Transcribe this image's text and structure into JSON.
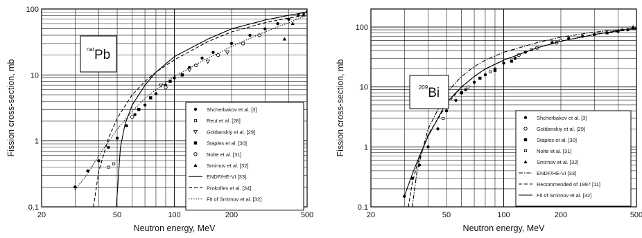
{
  "figure": {
    "panels": [
      {
        "id": "pb",
        "label": {
          "sup": "nat",
          "main": "Pb"
        },
        "xlabel": "Neutron energy, MeV",
        "ylabel": "Fission cross-section, mb",
        "x_tick_labels": [
          "20",
          "50",
          "100",
          "200",
          "500"
        ],
        "y_tick_labels": [
          "0.1",
          "1",
          "10",
          "100"
        ],
        "legend": [
          {
            "label": "Shcherbakov et al. [3]",
            "marker": "filled-circle"
          },
          {
            "label": "Reut et al. [28]",
            "marker": "small-square"
          },
          {
            "label": "Goldanskiy et al. [29]",
            "marker": "down-triangle"
          },
          {
            "label": "Staples et al. [30]",
            "marker": "filled-square"
          },
          {
            "label": "Nolte et al. [31]",
            "marker": "open-circle"
          },
          {
            "label": "Smirnov et al. [32]",
            "marker": "up-triangle"
          },
          {
            "label": "ENDF/HE-VI [33]",
            "line": "solid"
          },
          {
            "label": "Prokofiev et al. [34]",
            "line": "dashed"
          },
          {
            "label": "Fit of Smirnov et al. [32]",
            "line": "dotted"
          }
        ]
      },
      {
        "id": "bi",
        "label": {
          "sup": "209",
          "main": "Bi"
        },
        "xlabel": "Neutron energy, MeV",
        "ylabel": "Fission cross-section, mb",
        "x_tick_labels": [
          "20",
          "50",
          "100",
          "200",
          "500"
        ],
        "y_tick_labels": [
          "0.1",
          "1",
          "10",
          "100"
        ],
        "legend": [
          {
            "label": "Shcherbakov et al. [3]",
            "marker": "filled-circle"
          },
          {
            "label": "Goldanskiy et al. [29]",
            "marker": "open-circle"
          },
          {
            "label": "Staples et al. [30]",
            "marker": "filled-square"
          },
          {
            "label": "Nolte et al. [31]",
            "marker": "small-square"
          },
          {
            "label": "Smirnov et al. [32]",
            "marker": "up-triangle"
          },
          {
            "label": "ENDF/HE-VI [33]",
            "line": "dashdot"
          },
          {
            "label": "Recommended of 1997 [11]",
            "line": "dashed"
          },
          {
            "label": "Fit of Smirnov et al. [32]",
            "line": "solid"
          }
        ]
      }
    ]
  },
  "chart_data": [
    {
      "type": "scatter",
      "xlabel": "Neutron energy, MeV",
      "ylabel": "Fission cross-section, mb",
      "xscale": "log",
      "yscale": "log",
      "xlim": [
        20,
        500
      ],
      "ylim": [
        0.1,
        100
      ],
      "grid": true,
      "legend_position": "lower-right",
      "series": [
        {
          "name": "Shcherbakov et al. [3]",
          "kind": "points",
          "marker": "filled-circle",
          "x": [
            30,
            35,
            40,
            45,
            50,
            56,
            62,
            70,
            80,
            90,
            100,
            120,
            140,
            160,
            200,
            250,
            300,
            350,
            400,
            450,
            500
          ],
          "y": [
            0.2,
            0.35,
            0.5,
            0.8,
            1.1,
            1.7,
            2.5,
            3.5,
            5.2,
            7.0,
            9.0,
            13,
            18,
            22,
            30,
            40,
            50,
            60,
            70,
            80,
            90
          ]
        },
        {
          "name": "Reut et al. [28]",
          "kind": "points",
          "marker": "small-square",
          "x": [
            45,
            48
          ],
          "y": [
            0.4,
            0.45
          ]
        },
        {
          "name": "Goldanskiy et al. [29]",
          "kind": "points",
          "marker": "down-triangle",
          "x": [
            85,
            120,
            150,
            190
          ],
          "y": [
            7,
            12,
            16,
            22
          ]
        },
        {
          "name": "Staples et al. [30]",
          "kind": "points",
          "marker": "filled-square",
          "x": [
            65,
            75,
            95,
            110
          ],
          "y": [
            3,
            4.5,
            8,
            10
          ]
        },
        {
          "name": "Nolte et al. [31]",
          "kind": "points",
          "marker": "open-circle",
          "x": [
            60,
            90,
            130,
            170,
            230,
            280
          ],
          "y": [
            2.3,
            6.5,
            14,
            20,
            30,
            40
          ]
        },
        {
          "name": "Smirnov et al. [32]",
          "kind": "points",
          "marker": "up-triangle",
          "x": [
            380,
            420,
            480
          ],
          "y": [
            35,
            60,
            85
          ]
        },
        {
          "name": "ENDF/HE-VI [33]",
          "kind": "line",
          "style": "solid",
          "x": [
            49.5,
            52,
            55,
            60,
            70,
            80,
            100,
            150,
            200,
            300,
            400,
            500
          ],
          "y": [
            0.1,
            0.8,
            1.8,
            3.5,
            7,
            11,
            19,
            35,
            50,
            68,
            80,
            90
          ]
        },
        {
          "name": "Prokofiev et al. [34]",
          "kind": "line",
          "style": "dashed",
          "x": [
            37.5,
            40,
            45,
            50,
            60,
            70,
            80,
            100,
            150,
            200,
            300,
            400,
            500
          ],
          "y": [
            0.1,
            0.35,
            1.1,
            2.2,
            5,
            8,
            11,
            17,
            32,
            45,
            62,
            73,
            80
          ]
        },
        {
          "name": "Fit of Smirnov et al. [32]",
          "kind": "line",
          "style": "dotted",
          "x": [
            30,
            35,
            40,
            50,
            60,
            70,
            80,
            100,
            150,
            200,
            300,
            400,
            500
          ],
          "y": [
            0.18,
            0.32,
            0.6,
            1.5,
            2.8,
            4.4,
            6,
            9.5,
            18,
            27,
            45,
            62,
            80
          ]
        }
      ]
    },
    {
      "type": "scatter",
      "xlabel": "Neutron energy, MeV",
      "ylabel": "Fission cross-section, mb",
      "xscale": "log",
      "yscale": "log",
      "xlim": [
        20,
        500
      ],
      "ylim": [
        0.1,
        200
      ],
      "grid": true,
      "legend_position": "lower-right",
      "series": [
        {
          "name": "Shcherbakov et al. [3]",
          "kind": "points",
          "marker": "filled-circle",
          "x": [
            30,
            33,
            36,
            40,
            45,
            50,
            56,
            63,
            70,
            80,
            90,
            100,
            115,
            130,
            150,
            180,
            220,
            260,
            300,
            350,
            400,
            450,
            500
          ],
          "y": [
            0.15,
            0.3,
            0.5,
            1.0,
            2.0,
            4.0,
            6.0,
            9.0,
            12,
            16,
            20,
            25,
            30,
            38,
            45,
            55,
            65,
            70,
            75,
            80,
            85,
            90,
            95
          ]
        },
        {
          "name": "Goldanskiy et al. [29]",
          "kind": "points",
          "marker": "open-circle",
          "x": [
            120,
            150,
            190
          ],
          "y": [
            34,
            45,
            55
          ]
        },
        {
          "name": "Staples et al. [30]",
          "kind": "points",
          "marker": "filled-square",
          "x": [
            60,
            75,
            90,
            110
          ],
          "y": [
            8,
            14,
            19,
            27
          ]
        },
        {
          "name": "Nolte et al. [31]",
          "kind": "points",
          "marker": "small-square",
          "x": [
            48,
            65,
            85,
            140,
            200
          ],
          "y": [
            3,
            10,
            18,
            42,
            60
          ]
        },
        {
          "name": "Smirnov et al. [32]",
          "kind": "points",
          "marker": "up-triangle",
          "x": [
            350,
            420,
            480
          ],
          "y": [
            80,
            90,
            100
          ]
        },
        {
          "name": "ENDF/HE-VI [33]",
          "kind": "line",
          "style": "dashdot",
          "x": [
            33,
            35,
            40,
            50,
            60,
            70,
            80,
            100,
            150,
            200,
            300,
            400,
            500
          ],
          "y": [
            0.1,
            0.4,
            2,
            8,
            15,
            22,
            28,
            38,
            55,
            68,
            82,
            90,
            95
          ]
        },
        {
          "name": "Recommended of 1997 [11]",
          "kind": "line",
          "style": "dashed",
          "x": [
            31.5,
            33,
            35,
            40,
            50,
            60,
            70,
            80,
            100,
            150,
            200,
            300,
            400,
            500
          ],
          "y": [
            0.1,
            0.25,
            0.5,
            1.6,
            5,
            10,
            15,
            20,
            28,
            45,
            58,
            75,
            85,
            92
          ]
        },
        {
          "name": "Fit of Smirnov et al. [32]",
          "kind": "line",
          "style": "solid",
          "x": [
            30,
            33,
            36,
            40,
            45,
            50,
            60,
            70,
            80,
            100,
            150,
            200,
            300,
            400,
            500
          ],
          "y": [
            0.15,
            0.35,
            0.7,
            1.5,
            3,
            5.5,
            10,
            15,
            20,
            28,
            45,
            58,
            75,
            87,
            95
          ]
        }
      ]
    }
  ]
}
